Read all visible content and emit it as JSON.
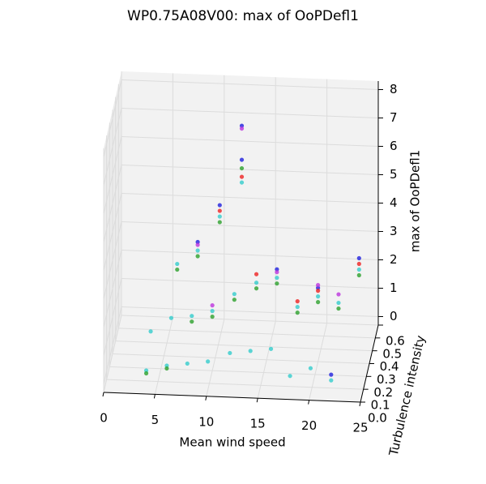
{
  "chart_data": {
    "type": "scatter3d",
    "title": "WP0.75A08V00: max of OoPDefl1",
    "xlabel": "Mean wind speed",
    "ylabel": "Turbulence intensity",
    "zlabel": "max of OoPDefl1",
    "xlim": [
      0,
      25
    ],
    "xticks": [
      0,
      5,
      10,
      15,
      20,
      25
    ],
    "ylim": [
      0,
      0.6
    ],
    "yticks": [
      {
        "value": 0,
        "label": "0.0"
      },
      0.1,
      0.2,
      0.3,
      0.4,
      0.5,
      0.6
    ],
    "zlim": [
      -0.3,
      8.3
    ],
    "zticks": [
      0,
      1,
      2,
      3,
      4,
      5,
      6,
      7,
      8
    ],
    "grid": true,
    "series": [
      {
        "color": "#33cccc",
        "x": [
          4,
          4,
          6,
          6,
          6,
          8,
          8,
          8,
          10,
          10,
          10,
          12,
          12,
          12,
          14,
          14,
          16,
          16,
          18,
          18,
          20,
          20,
          22,
          22,
          24
        ],
        "y": [
          0.05,
          0.2,
          0.05,
          0.2,
          0.4,
          0.05,
          0.2,
          0.4,
          0.05,
          0.2,
          0.45,
          0.1,
          0.25,
          0.5,
          0.1,
          0.3,
          0.1,
          0.3,
          0.05,
          0.3,
          0.05,
          0.3,
          0.05,
          0.3,
          0.3
        ],
        "z": [
          0.3,
          1.0,
          0.5,
          1.5,
          2.5,
          0.6,
          1.6,
          3.0,
          0.7,
          1.8,
          4.0,
          0.8,
          2.2,
          5.0,
          0.9,
          2.4,
          1.0,
          2.6,
          0.3,
          1.6,
          0.6,
          2.0,
          0.2,
          1.8,
          3.0
        ]
      },
      {
        "color": "#2ca02c",
        "x": [
          4,
          6,
          6,
          8,
          8,
          10,
          10,
          12,
          12,
          14,
          16,
          18,
          20,
          22,
          24
        ],
        "y": [
          0.05,
          0.05,
          0.4,
          0.2,
          0.4,
          0.2,
          0.45,
          0.25,
          0.5,
          0.3,
          0.3,
          0.3,
          0.3,
          0.3,
          0.3
        ],
        "z": [
          0.2,
          0.4,
          2.3,
          1.4,
          2.8,
          1.6,
          3.8,
          2.0,
          5.5,
          2.2,
          2.4,
          1.4,
          1.8,
          1.6,
          2.8
        ]
      },
      {
        "color": "#1f1fdd",
        "x": [
          8,
          10,
          12,
          12,
          16,
          20,
          22,
          24
        ],
        "y": [
          0.4,
          0.45,
          0.5,
          0.5,
          0.3,
          0.3,
          0.05,
          0.3
        ],
        "z": [
          3.3,
          4.4,
          7.0,
          5.8,
          2.9,
          2.3,
          0.4,
          3.4
        ]
      },
      {
        "color": "#ee2222",
        "x": [
          10,
          12,
          14,
          18,
          20,
          24
        ],
        "y": [
          0.45,
          0.5,
          0.3,
          0.3,
          0.3,
          0.3
        ],
        "z": [
          4.2,
          5.2,
          2.7,
          1.8,
          2.2,
          3.2
        ]
      },
      {
        "color": "#bb33dd",
        "x": [
          8,
          10,
          12,
          16,
          20,
          22
        ],
        "y": [
          0.4,
          0.2,
          0.5,
          0.3,
          0.3,
          0.3
        ],
        "z": [
          3.2,
          2.0,
          6.9,
          2.8,
          2.4,
          2.1
        ]
      }
    ]
  }
}
